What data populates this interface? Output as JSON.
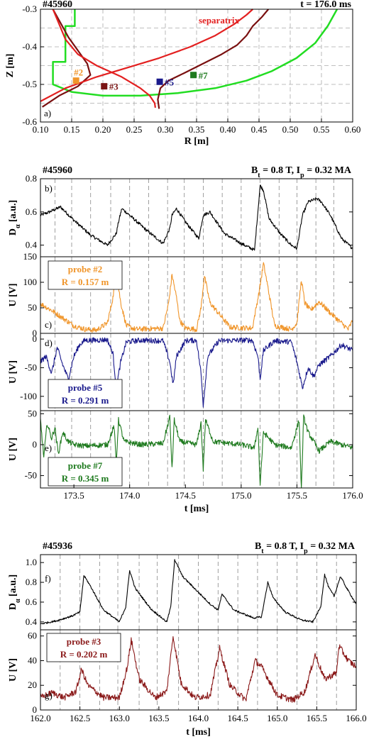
{
  "chart_data": [
    {
      "type": "line",
      "panel": "a)",
      "shot": "#45960",
      "time_label": "t = 176.0 ms",
      "xlabel": "R [m]",
      "ylabel": "Z [m]",
      "xlim": [
        0.1,
        0.6
      ],
      "ylim": [
        -0.6,
        -0.3
      ],
      "xticks": [
        "0.10",
        "0.15",
        "0.20",
        "0.25",
        "0.30",
        "0.35",
        "0.40",
        "0.45",
        "0.50",
        "0.55",
        "0.60"
      ],
      "yticks": [
        "-0.3",
        "-0.4",
        "-0.5",
        "-0.6"
      ],
      "separatrix_label": "separatrix",
      "colors": {
        "wall": "#22dd22",
        "separatrix": "#e32020",
        "flux": "#7a1010",
        "p2": "#f0952a",
        "p3": "#7a1414",
        "p5": "#1a1a8c",
        "p7": "#1e7a1e"
      },
      "wall": {
        "x": [
          0.155,
          0.155,
          0.14,
          0.14,
          0.12,
          0.12,
          0.15,
          0.2,
          0.26,
          0.32,
          0.38,
          0.43,
          0.47,
          0.51,
          0.54,
          0.56,
          0.575
        ],
        "y": [
          -0.3,
          -0.345,
          -0.345,
          -0.44,
          -0.44,
          -0.5,
          -0.52,
          -0.53,
          -0.53,
          -0.523,
          -0.51,
          -0.49,
          -0.465,
          -0.43,
          -0.39,
          -0.345,
          -0.3
        ]
      },
      "separatrix_upper": {
        "x": [
          0.12,
          0.125,
          0.13,
          0.14,
          0.16,
          0.19,
          0.23,
          0.26,
          0.275,
          0.283,
          0.284
        ],
        "y": [
          -0.3,
          -0.32,
          -0.34,
          -0.38,
          -0.42,
          -0.45,
          -0.48,
          -0.51,
          -0.53,
          -0.55,
          -0.562
        ]
      },
      "separatrix_lower": {
        "x": [
          0.1,
          0.14,
          0.19,
          0.24,
          0.29,
          0.34,
          0.38,
          0.41,
          0.43,
          0.44
        ],
        "y": [
          -0.545,
          -0.51,
          -0.48,
          -0.455,
          -0.43,
          -0.4,
          -0.37,
          -0.34,
          -0.315,
          -0.3
        ]
      },
      "flux_left": {
        "x": [
          0.103,
          0.13,
          0.16,
          0.18,
          0.175,
          0.16,
          0.145,
          0.13,
          0.12
        ],
        "y": [
          -0.56,
          -0.53,
          -0.505,
          -0.475,
          -0.445,
          -0.41,
          -0.375,
          -0.33,
          -0.3
        ]
      },
      "flux_right": {
        "x": [
          0.29,
          0.288,
          0.292,
          0.305,
          0.33,
          0.36,
          0.39,
          0.415,
          0.43,
          0.44,
          0.455,
          0.465
        ],
        "y": [
          -0.565,
          -0.54,
          -0.51,
          -0.49,
          -0.47,
          -0.445,
          -0.42,
          -0.395,
          -0.37,
          -0.345,
          -0.32,
          -0.3
        ]
      },
      "probes": [
        {
          "name": "#2",
          "R": 0.157,
          "Z": -0.49
        },
        {
          "name": "#3",
          "R": 0.202,
          "Z": -0.505
        },
        {
          "name": "#5",
          "R": 0.291,
          "Z": -0.493
        },
        {
          "name": "#7",
          "R": 0.345,
          "Z": -0.475
        }
      ]
    },
    {
      "type": "line",
      "shot": "#45960",
      "params": "B_t = 0.8 T, I_p = 0.32 MA",
      "xlabel": "t [ms]",
      "xlim": [
        173.2,
        176.0
      ],
      "xticks": [
        "173.5",
        "174.0",
        "174.5",
        "175.0",
        "175.5",
        "176.0"
      ],
      "elm_times_ms": [
        173.33,
        173.48,
        173.65,
        173.83,
        174.0,
        174.17,
        174.34,
        174.49,
        174.66,
        174.83,
        175.0,
        175.17,
        175.34,
        175.5,
        175.67,
        175.83
      ],
      "panels": [
        {
          "label": "b)",
          "ylabel": "Dα [a.u.]",
          "ylim": [
            0.33,
            0.8
          ],
          "yticks": [
            "0.4",
            "0.6",
            "0.8"
          ],
          "color": "#000000",
          "t": [
            173.2,
            173.28,
            173.38,
            173.5,
            173.65,
            173.8,
            173.88,
            173.9,
            173.93,
            174.0,
            174.15,
            174.3,
            174.36,
            174.38,
            174.42,
            174.5,
            174.62,
            174.66,
            174.72,
            174.85,
            175.0,
            175.12,
            175.17,
            175.2,
            175.25,
            175.35,
            175.45,
            175.5,
            175.55,
            175.6,
            175.68,
            175.72,
            175.8,
            175.9,
            176.0
          ],
          "y": [
            0.58,
            0.6,
            0.63,
            0.55,
            0.46,
            0.4,
            0.47,
            0.54,
            0.62,
            0.58,
            0.49,
            0.41,
            0.5,
            0.58,
            0.62,
            0.54,
            0.44,
            0.58,
            0.6,
            0.47,
            0.41,
            0.37,
            0.76,
            0.73,
            0.56,
            0.47,
            0.4,
            0.38,
            0.58,
            0.66,
            0.68,
            0.66,
            0.58,
            0.44,
            0.38
          ]
        },
        {
          "label": "c)",
          "ylabel": "U [V]",
          "ylim": [
            0,
            150
          ],
          "yticks": [
            "0",
            "50",
            "100",
            "150"
          ],
          "color": "#f0952a",
          "probe_label": "probe #2",
          "R_label": "R = 0.157 m",
          "t": [
            173.2,
            173.3,
            173.4,
            173.5,
            173.6,
            173.7,
            173.8,
            173.85,
            173.88,
            173.92,
            173.97,
            174.05,
            174.3,
            174.35,
            174.38,
            174.42,
            174.45,
            174.5,
            174.6,
            174.64,
            174.67,
            174.72,
            174.9,
            175.1,
            175.16,
            175.2,
            175.24,
            175.3,
            175.45,
            175.5,
            175.54,
            175.57,
            175.62,
            175.7,
            175.8,
            175.9,
            175.96,
            176.0
          ],
          "y": [
            58,
            45,
            30,
            15,
            8,
            6,
            20,
            70,
            120,
            60,
            15,
            8,
            10,
            60,
            115,
            70,
            25,
            10,
            8,
            50,
            113,
            60,
            12,
            10,
            80,
            137,
            90,
            15,
            8,
            20,
            105,
            60,
            45,
            62,
            40,
            20,
            8,
            25
          ]
        },
        {
          "label": "d)",
          "ylabel": "U [V]",
          "ylim": [
            -125,
            10
          ],
          "yticks": [
            "0",
            "-50",
            "-100"
          ],
          "color": "#1a1a8c",
          "probe_label": "probe #5",
          "R_label": "R = 0.291 m",
          "t": [
            173.2,
            173.25,
            173.3,
            173.35,
            173.4,
            173.45,
            173.5,
            173.55,
            173.6,
            173.7,
            173.8,
            173.85,
            173.88,
            173.92,
            173.97,
            174.1,
            174.3,
            174.36,
            174.39,
            174.42,
            174.5,
            174.6,
            174.64,
            174.66,
            174.7,
            174.8,
            175.0,
            175.1,
            175.15,
            175.17,
            175.2,
            175.3,
            175.45,
            175.5,
            175.55,
            175.6,
            175.65,
            175.7,
            175.8,
            175.9,
            176.0
          ],
          "y": [
            -40,
            -30,
            -60,
            -15,
            -45,
            -70,
            -30,
            -10,
            -2,
            -2,
            -1,
            -25,
            -85,
            -40,
            -5,
            -2,
            -3,
            -40,
            -80,
            -30,
            -3,
            -2,
            -60,
            -115,
            -30,
            -3,
            -2,
            -2,
            -30,
            -70,
            -20,
            -3,
            -5,
            -40,
            -85,
            -50,
            -65,
            -45,
            -30,
            -10,
            -20
          ]
        },
        {
          "label": "e)",
          "ylabel": "U [V]",
          "ylim": [
            -70,
            55
          ],
          "yticks": [
            "50",
            "0",
            "-50"
          ],
          "color": "#1e7a1e",
          "probe_label": "probe #7",
          "R_label": "R = 0.345 m",
          "t": [
            173.2,
            173.23,
            173.26,
            173.3,
            173.33,
            173.36,
            173.4,
            173.45,
            173.5,
            173.6,
            173.8,
            173.86,
            173.88,
            173.9,
            173.95,
            174.1,
            174.3,
            174.36,
            174.38,
            174.4,
            174.45,
            174.6,
            174.64,
            174.66,
            174.68,
            174.75,
            175.0,
            175.12,
            175.15,
            175.17,
            175.2,
            175.3,
            175.45,
            175.52,
            175.54,
            175.56,
            175.6,
            175.7,
            175.8,
            176.0
          ],
          "y": [
            40,
            -20,
            35,
            10,
            28,
            -15,
            20,
            5,
            0,
            -2,
            0,
            30,
            -30,
            40,
            5,
            0,
            2,
            45,
            -40,
            40,
            5,
            0,
            35,
            -40,
            40,
            5,
            0,
            -5,
            30,
            -65,
            20,
            0,
            -5,
            40,
            -75,
            45,
            20,
            -10,
            5,
            -5
          ]
        }
      ]
    },
    {
      "type": "line",
      "shot": "#45936",
      "params": "B_t = 0.8 T, I_p = 0.32 MA",
      "xlabel": "t [ms]",
      "xlim": [
        162.0,
        166.0
      ],
      "xticks": [
        "162.0",
        "162.5",
        "163.0",
        "163.5",
        "164.0",
        "164.5",
        "165.0",
        "165.5",
        "166.0"
      ],
      "elm_times_ms": [
        162.25,
        162.5,
        162.75,
        162.98,
        163.25,
        163.48,
        163.75,
        164.0,
        164.25,
        164.5,
        164.75,
        165.0,
        165.25,
        165.5,
        165.75
      ],
      "panels": [
        {
          "label": "f)",
          "ylabel": "Dα [a.u.]",
          "ylim": [
            0.32,
            1.08
          ],
          "yticks": [
            "0.4",
            "0.6",
            "0.8",
            "1.0"
          ],
          "color": "#000000",
          "t": [
            162.0,
            162.2,
            162.4,
            162.5,
            162.55,
            162.62,
            162.8,
            163.0,
            163.08,
            163.13,
            163.2,
            163.4,
            163.6,
            163.65,
            163.7,
            163.8,
            164.0,
            164.15,
            164.25,
            164.3,
            164.45,
            164.7,
            164.8,
            164.88,
            164.95,
            165.1,
            165.3,
            165.45,
            165.55,
            165.6,
            165.65,
            165.72,
            165.8,
            165.88,
            166.0
          ],
          "y": [
            0.38,
            0.41,
            0.46,
            0.5,
            0.87,
            0.78,
            0.52,
            0.4,
            0.55,
            0.92,
            0.74,
            0.53,
            0.4,
            0.55,
            1.03,
            0.86,
            0.7,
            0.58,
            0.52,
            0.68,
            0.52,
            0.44,
            0.45,
            0.8,
            0.64,
            0.5,
            0.42,
            0.4,
            0.55,
            0.88,
            0.75,
            0.66,
            0.86,
            0.74,
            0.58
          ]
        },
        {
          "label": "g)",
          "ylabel": "U [V]",
          "ylim": [
            0,
            65
          ],
          "yticks": [
            "0",
            "20",
            "40",
            "60"
          ],
          "color": "#8b1a1a",
          "probe_label": "probe #3",
          "R_label": "R = 0.202 m",
          "t": [
            162.0,
            162.15,
            162.3,
            162.45,
            162.52,
            162.6,
            162.8,
            163.0,
            163.1,
            163.15,
            163.25,
            163.45,
            163.6,
            163.68,
            163.78,
            163.95,
            164.15,
            164.27,
            164.4,
            164.6,
            164.72,
            164.8,
            165.0,
            165.2,
            165.35,
            165.48,
            165.6,
            165.75,
            165.78,
            165.9,
            166.0
          ],
          "y": [
            10,
            14,
            10,
            15,
            33,
            20,
            10,
            10,
            35,
            57,
            25,
            10,
            15,
            60,
            22,
            10,
            12,
            50,
            20,
            8,
            40,
            35,
            12,
            8,
            15,
            45,
            25,
            30,
            52,
            40,
            35
          ]
        }
      ]
    }
  ]
}
